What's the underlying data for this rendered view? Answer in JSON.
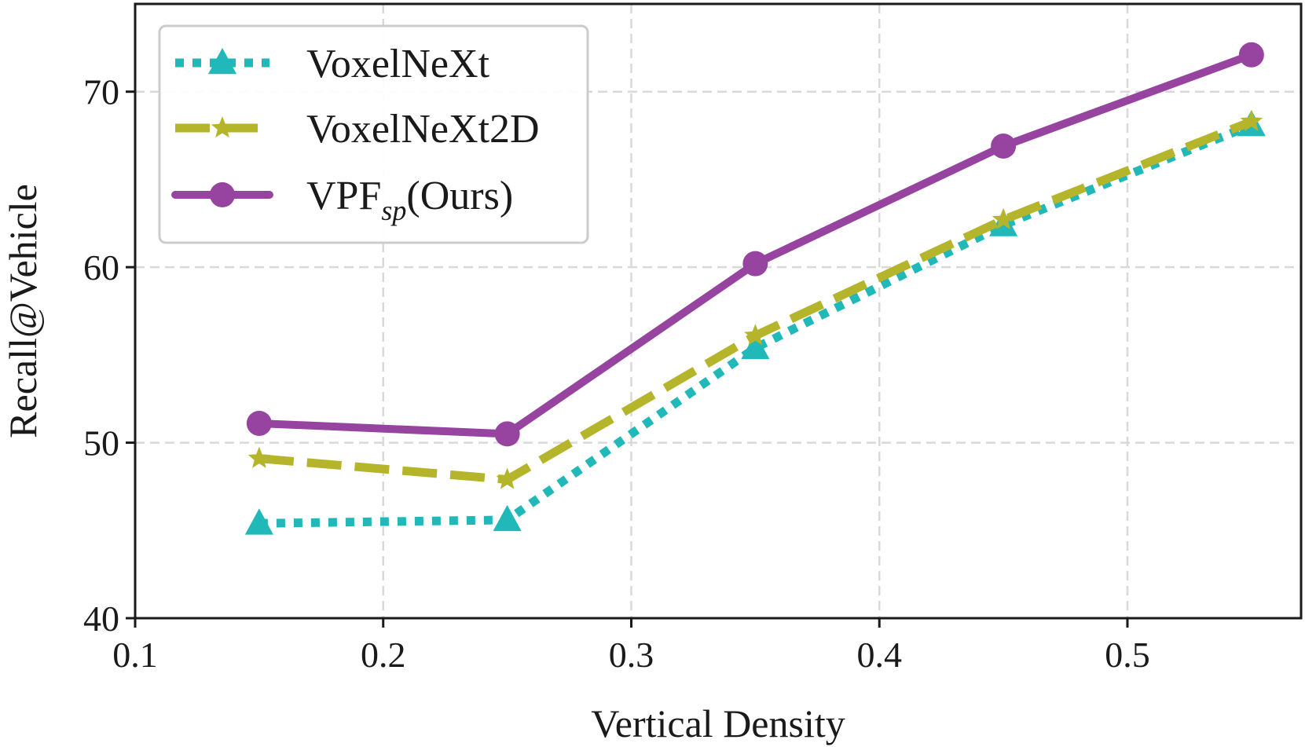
{
  "chart_data": {
    "type": "line",
    "title": "",
    "xlabel": "Vertical Density",
    "ylabel": "Recall@Vehicle",
    "xlim": [
      0.1,
      0.57
    ],
    "ylim": [
      40,
      75
    ],
    "xticks": [
      0.1,
      0.2,
      0.3,
      0.4,
      0.5
    ],
    "xtick_labels": [
      "0.1",
      "0.2",
      "0.3",
      "0.4",
      "0.5"
    ],
    "yticks": [
      40,
      50,
      60,
      70
    ],
    "ytick_labels": [
      "40",
      "50",
      "60",
      "70"
    ],
    "grid": true,
    "legend_position": "top-left",
    "x": [
      0.15,
      0.25,
      0.35,
      0.45,
      0.55
    ],
    "series": [
      {
        "name": "VoxelNeXt",
        "values": [
          45.4,
          45.6,
          55.4,
          62.4,
          68.1
        ],
        "color": "#20b8b8",
        "line_style": "dotted",
        "marker": "triangle"
      },
      {
        "name": "VoxelNeXt2D",
        "values": [
          49.1,
          47.9,
          56.1,
          62.7,
          68.3
        ],
        "color": "#b5b52c",
        "line_style": "dashed",
        "marker": "star"
      },
      {
        "name": "VPF",
        "name_subscript": "sp",
        "name_suffix": "(Ours)",
        "values": [
          51.1,
          50.5,
          60.2,
          66.9,
          72.1
        ],
        "color": "#9644a0",
        "line_style": "solid",
        "marker": "circle"
      }
    ]
  }
}
